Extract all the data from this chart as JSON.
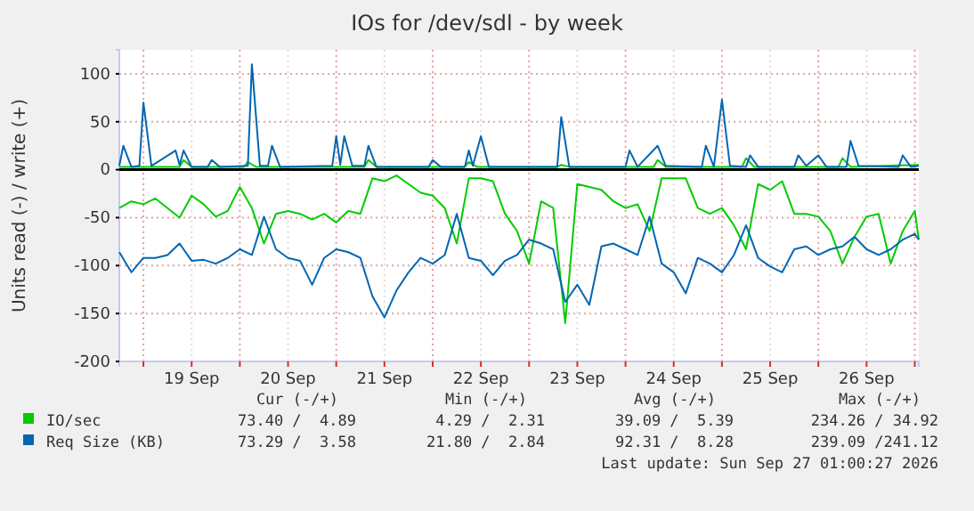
{
  "chart_data": {
    "type": "line",
    "title": "IOs for /dev/sdl - by week",
    "ylabel": "Units read (-) / write (+)",
    "x": [
      "2026-09-18T18:00",
      "2026-09-18T21:00",
      "2026-09-19T00:00",
      "2026-09-19T03:00",
      "2026-09-19T06:00",
      "2026-09-19T09:00",
      "2026-09-19T12:00",
      "2026-09-19T15:00",
      "2026-09-19T18:00",
      "2026-09-19T21:00",
      "2026-09-20T00:00",
      "2026-09-20T03:00",
      "2026-09-20T06:00",
      "2026-09-20T09:00",
      "2026-09-20T12:00",
      "2026-09-20T15:00",
      "2026-09-20T18:00",
      "2026-09-20T21:00",
      "2026-09-21T00:00",
      "2026-09-21T03:00",
      "2026-09-21T06:00",
      "2026-09-21T09:00",
      "2026-09-21T12:00",
      "2026-09-21T15:00",
      "2026-09-21T18:00",
      "2026-09-21T21:00",
      "2026-09-22T00:00",
      "2026-09-22T03:00",
      "2026-09-22T06:00",
      "2026-09-22T09:00",
      "2026-09-22T12:00",
      "2026-09-22T15:00",
      "2026-09-22T18:00",
      "2026-09-22T21:00",
      "2026-09-23T00:00",
      "2026-09-23T03:00",
      "2026-09-23T06:00",
      "2026-09-23T09:00",
      "2026-09-23T12:00",
      "2026-09-23T15:00",
      "2026-09-23T18:00",
      "2026-09-23T21:00",
      "2026-09-24T00:00",
      "2026-09-24T03:00",
      "2026-09-24T06:00",
      "2026-09-24T09:00",
      "2026-09-24T12:00",
      "2026-09-24T15:00",
      "2026-09-24T18:00",
      "2026-09-24T21:00",
      "2026-09-25T00:00",
      "2026-09-25T03:00",
      "2026-09-25T06:00",
      "2026-09-25T09:00",
      "2026-09-25T12:00",
      "2026-09-25T15:00",
      "2026-09-25T18:00",
      "2026-09-25T21:00",
      "2026-09-26T00:00",
      "2026-09-26T03:00",
      "2026-09-26T06:00",
      "2026-09-26T09:00",
      "2026-09-26T12:00",
      "2026-09-26T15:00",
      "2026-09-26T18:00",
      "2026-09-26T21:00",
      "2026-09-27T00:00",
      "2026-09-27T01:00"
    ],
    "series": [
      {
        "color": "#00cc00",
        "values": [
          -40,
          -33,
          -36,
          -30,
          -40,
          -50,
          -27,
          -36,
          -49,
          -43,
          -18,
          -40,
          -77,
          -46,
          -43,
          -46,
          -52,
          -46,
          -55,
          -43,
          -46,
          -9,
          -12,
          -6,
          -15,
          -24,
          -27,
          -40,
          -77,
          -9,
          -9,
          -12,
          -46,
          -64,
          -98,
          -33,
          -40,
          -160,
          -15,
          -18,
          -21,
          -33,
          -40,
          -36,
          -64,
          -9,
          -9,
          -9,
          -40,
          -46,
          -40,
          -58,
          -83,
          -15,
          -21,
          -12,
          -46,
          -46,
          -49,
          -64,
          -98,
          -70,
          -49,
          -46,
          -98,
          -64,
          -43,
          -73
        ]
      },
      {
        "name": "IO/sec",
        "color": "#00cc00",
        "x": [
          "2026-09-18T18:00",
          "2026-09-19T09:00",
          "2026-09-19T10:00",
          "2026-09-19T12:00",
          "2026-09-20T01:00",
          "2026-09-20T02:00",
          "2026-09-20T04:00",
          "2026-09-21T07:00",
          "2026-09-21T08:00",
          "2026-09-21T10:00",
          "2026-09-22T08:00",
          "2026-09-22T09:00",
          "2026-09-22T11:00",
          "2026-09-23T07:00",
          "2026-09-23T08:00",
          "2026-09-23T10:00",
          "2026-09-24T07:00",
          "2026-09-24T08:00",
          "2026-09-24T10:00",
          "2026-09-25T05:00",
          "2026-09-25T06:00",
          "2026-09-25T08:00",
          "2026-09-26T05:00",
          "2026-09-26T06:00",
          "2026-09-26T08:00",
          "2026-09-27T01:00"
        ],
        "values": [
          3,
          3,
          10,
          3,
          3,
          8,
          3,
          3,
          10,
          3,
          3,
          8,
          3,
          3,
          5,
          3,
          3,
          10,
          3,
          3,
          12,
          3,
          3,
          12,
          3,
          5
        ]
      },
      {
        "color": "#0066b3",
        "values": [
          -86,
          -107,
          -92,
          -92,
          -89,
          -77,
          -95,
          -94,
          -98,
          -92,
          -83,
          -89,
          -49,
          -83,
          -92,
          -95,
          -120,
          -92,
          -83,
          -86,
          -92,
          -132,
          -154,
          -126,
          -107,
          -92,
          -98,
          -89,
          -46,
          -92,
          -95,
          -110,
          -95,
          -89,
          -73,
          -77,
          -83,
          -138,
          -120,
          -141,
          -80,
          -77,
          -83,
          -89,
          -49,
          -98,
          -107,
          -129,
          -92,
          -98,
          -107,
          -89,
          -58,
          -92,
          -101,
          -107,
          -83,
          -80,
          -89,
          -83,
          -80,
          -70,
          -83,
          -89,
          -83,
          -73,
          -67,
          -73
        ]
      },
      {
        "name": "Req Size (KB)",
        "color": "#0066b3",
        "x": [
          "2026-09-18T18:00",
          "2026-09-18T19:00",
          "2026-09-18T21:00",
          "2026-09-18T23:00",
          "2026-09-19T00:00",
          "2026-09-19T02:00",
          "2026-09-19T08:00",
          "2026-09-19T09:00",
          "2026-09-19T10:00",
          "2026-09-19T12:00",
          "2026-09-19T16:00",
          "2026-09-19T17:00",
          "2026-09-19T19:00",
          "2026-09-20T02:00",
          "2026-09-20T03:00",
          "2026-09-20T05:00",
          "2026-09-20T07:00",
          "2026-09-20T08:00",
          "2026-09-20T10:00",
          "2026-09-20T23:00",
          "2026-09-21T00:00",
          "2026-09-21T01:00",
          "2026-09-21T02:00",
          "2026-09-21T04:00",
          "2026-09-21T07:00",
          "2026-09-21T08:00",
          "2026-09-21T10:00",
          "2026-09-21T23:00",
          "2026-09-22T00:00",
          "2026-09-22T02:00",
          "2026-09-22T08:00",
          "2026-09-22T09:00",
          "2026-09-22T10:00",
          "2026-09-22T12:00",
          "2026-09-22T14:00",
          "2026-09-23T07:00",
          "2026-09-23T08:00",
          "2026-09-23T10:00",
          "2026-09-24T00:00",
          "2026-09-24T01:00",
          "2026-09-24T03:00",
          "2026-09-24T08:00",
          "2026-09-24T10:00",
          "2026-09-24T19:00",
          "2026-09-24T20:00",
          "2026-09-24T22:00",
          "2026-09-25T00:00",
          "2026-09-25T02:00",
          "2026-09-25T06:00",
          "2026-09-25T07:00",
          "2026-09-25T09:00",
          "2026-09-25T18:00",
          "2026-09-25T19:00",
          "2026-09-25T21:00",
          "2026-09-26T00:00",
          "2026-09-26T02:00",
          "2026-09-26T07:00",
          "2026-09-26T08:00",
          "2026-09-26T10:00",
          "2026-09-26T20:00",
          "2026-09-26T21:00",
          "2026-09-26T23:00",
          "2026-09-27T01:00"
        ],
        "values": [
          4,
          25,
          3,
          4,
          70,
          4,
          20,
          5,
          20,
          3,
          3,
          10,
          3,
          4,
          110,
          4,
          4,
          25,
          3,
          4,
          35,
          5,
          35,
          4,
          4,
          25,
          3,
          3,
          10,
          3,
          3,
          20,
          4,
          35,
          3,
          3,
          55,
          3,
          3,
          20,
          3,
          25,
          4,
          3,
          25,
          3,
          73,
          4,
          3,
          15,
          3,
          3,
          15,
          4,
          15,
          3,
          3,
          30,
          4,
          3,
          15,
          3,
          4
        ]
      }
    ],
    "xlim": [
      "2026-09-18T18:00",
      "2026-09-27T01:00"
    ],
    "xticks": [
      {
        "value": "2026-09-19T00:00",
        "label": null
      },
      {
        "value": "2026-09-19T12:00",
        "label": "19 Sep"
      },
      {
        "value": "2026-09-20T00:00",
        "label": null
      },
      {
        "value": "2026-09-20T12:00",
        "label": "20 Sep"
      },
      {
        "value": "2026-09-21T00:00",
        "label": null
      },
      {
        "value": "2026-09-21T12:00",
        "label": "21 Sep"
      },
      {
        "value": "2026-09-22T00:00",
        "label": null
      },
      {
        "value": "2026-09-22T12:00",
        "label": "22 Sep"
      },
      {
        "value": "2026-09-23T00:00",
        "label": null
      },
      {
        "value": "2026-09-23T12:00",
        "label": "23 Sep"
      },
      {
        "value": "2026-09-24T00:00",
        "label": null
      },
      {
        "value": "2026-09-24T12:00",
        "label": "24 Sep"
      },
      {
        "value": "2026-09-25T00:00",
        "label": null
      },
      {
        "value": "2026-09-25T12:00",
        "label": "25 Sep"
      },
      {
        "value": "2026-09-26T00:00",
        "label": null
      },
      {
        "value": "2026-09-26T12:00",
        "label": "26 Sep"
      },
      {
        "value": "2026-09-27T00:00",
        "label": null
      }
    ],
    "ylim": [
      -200,
      125
    ],
    "yticks": [
      -200,
      -150,
      -100,
      -50,
      0,
      50,
      100
    ],
    "grid": true,
    "legend": "bottom left",
    "ref_lines": [
      {
        "axis": "y",
        "value": 0,
        "color": "#000000"
      }
    ],
    "annotations": [
      "Cur (-/+)",
      "Min (-/+)",
      "Avg (-/+)",
      "Max (-/+)",
      "73.40 /  4.89",
      "4.29 /  2.31",
      "39.09 /  5.39",
      "234.26 / 34.92",
      "73.29 /  3.58",
      "21.80 /  2.84",
      "92.31 /  8.28",
      "239.09 /241.12",
      "Last update: Sun Sep 27 01:00:27 2026"
    ]
  }
}
